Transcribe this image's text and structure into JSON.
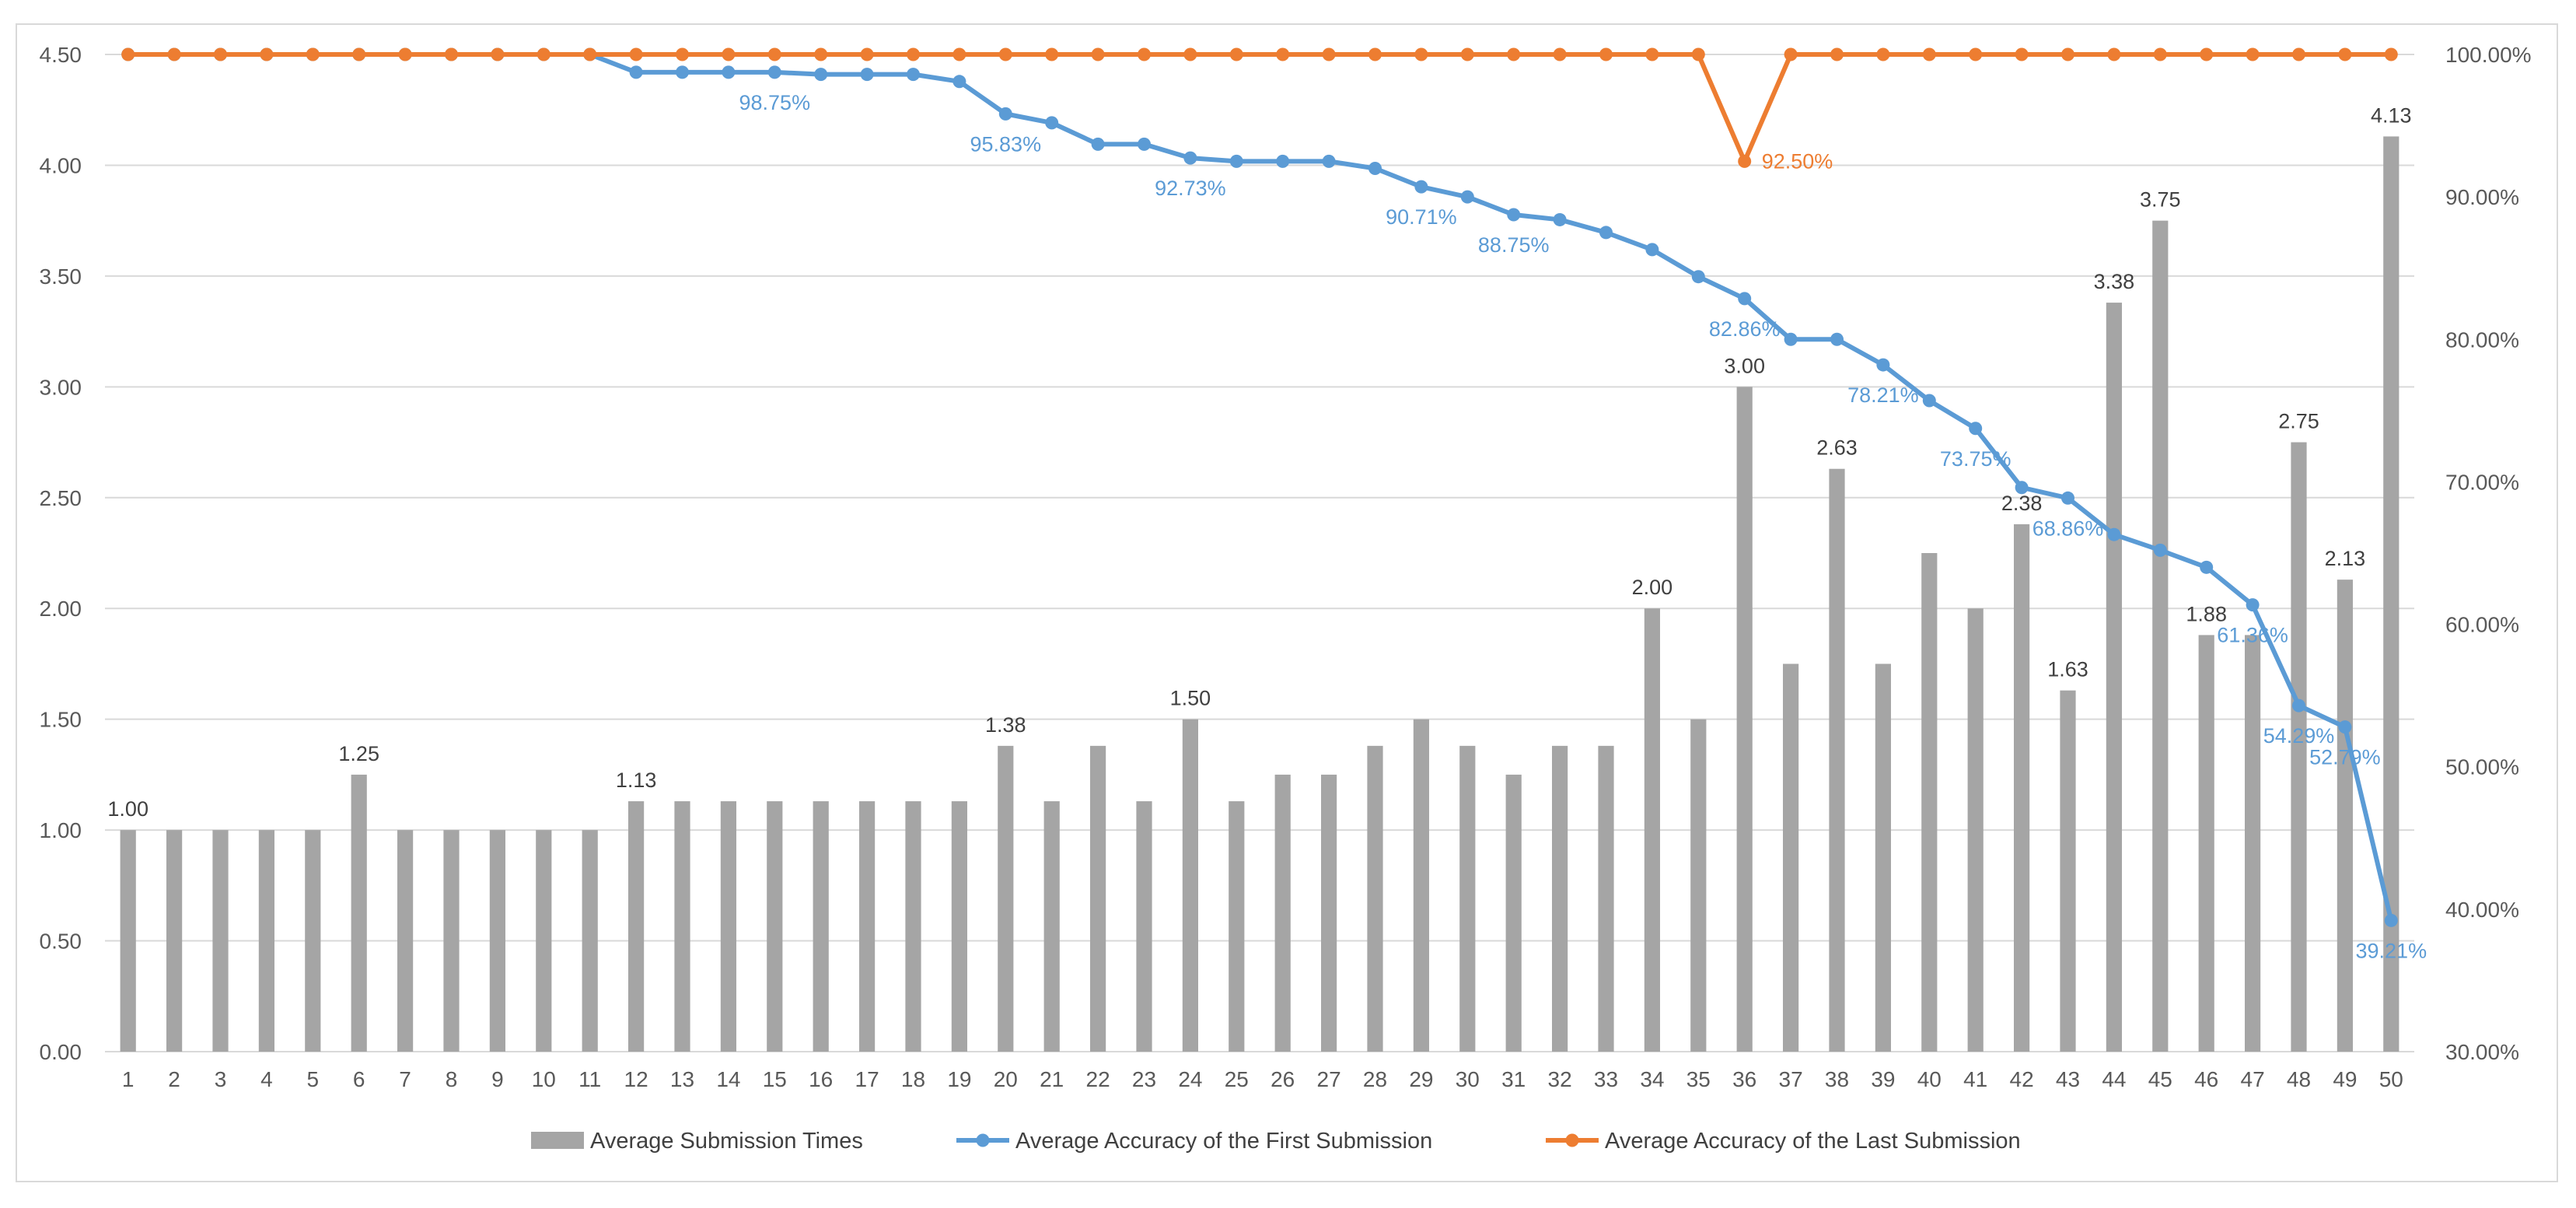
{
  "chart_data": {
    "type": "bar+line",
    "title": "",
    "categories": [
      "1",
      "2",
      "3",
      "4",
      "5",
      "6",
      "7",
      "8",
      "9",
      "10",
      "11",
      "12",
      "13",
      "14",
      "15",
      "16",
      "17",
      "18",
      "19",
      "20",
      "21",
      "22",
      "23",
      "24",
      "25",
      "26",
      "27",
      "28",
      "29",
      "30",
      "31",
      "32",
      "33",
      "34",
      "35",
      "36",
      "37",
      "38",
      "39",
      "40",
      "41",
      "42",
      "43",
      "44",
      "45",
      "46",
      "47",
      "48",
      "49",
      "50"
    ],
    "series": [
      {
        "name": "Average Submission Times",
        "kind": "bar",
        "axis": "left",
        "color": "#a5a5a5",
        "values": [
          1.0,
          1.0,
          1.0,
          1.0,
          1.0,
          1.25,
          1.0,
          1.0,
          1.0,
          1.0,
          1.0,
          1.13,
          1.13,
          1.13,
          1.13,
          1.13,
          1.13,
          1.13,
          1.13,
          1.38,
          1.13,
          1.38,
          1.13,
          1.5,
          1.13,
          1.25,
          1.25,
          1.38,
          1.5,
          1.38,
          1.25,
          1.38,
          1.38,
          2.0,
          1.5,
          3.0,
          1.75,
          2.63,
          1.75,
          2.25,
          2.0,
          2.38,
          1.63,
          3.38,
          3.75,
          1.88,
          1.88,
          2.75,
          2.13,
          4.13
        ]
      },
      {
        "name": "Average Accuracy of the First Submission",
        "kind": "line",
        "axis": "right",
        "color": "#5b9bd5",
        "values": [
          100,
          100,
          100,
          100,
          100,
          100,
          100,
          100,
          100,
          100,
          100,
          98.75,
          98.75,
          98.75,
          98.75,
          98.6,
          98.6,
          98.6,
          98.1,
          95.83,
          95.2,
          93.7,
          93.7,
          92.73,
          92.5,
          92.5,
          92.5,
          92.0,
          90.71,
          90.0,
          88.75,
          88.4,
          87.5,
          86.3,
          84.4,
          82.86,
          80.0,
          80.0,
          78.21,
          75.7,
          73.75,
          69.6,
          68.86,
          66.3,
          65.2,
          64.0,
          61.36,
          54.29,
          52.79,
          39.21
        ]
      },
      {
        "name": "Average Accuracy of the Last Submission",
        "kind": "line",
        "axis": "right",
        "color": "#ed7d31",
        "values": [
          100,
          100,
          100,
          100,
          100,
          100,
          100,
          100,
          100,
          100,
          100,
          100,
          100,
          100,
          100,
          100,
          100,
          100,
          100,
          100,
          100,
          100,
          100,
          100,
          100,
          100,
          100,
          100,
          100,
          100,
          100,
          100,
          100,
          100,
          100,
          92.5,
          100,
          100,
          100,
          100,
          100,
          100,
          100,
          100,
          100,
          100,
          100,
          100,
          100,
          100
        ]
      }
    ],
    "y_left": {
      "min": 0,
      "max": 4.5,
      "step": 0.5,
      "ticks": [
        "0.00",
        "0.50",
        "1.00",
        "1.50",
        "2.00",
        "2.50",
        "3.00",
        "3.50",
        "4.00",
        "4.50"
      ]
    },
    "y_right": {
      "min": 30,
      "max": 100,
      "step": 10,
      "ticks": [
        "30.00%",
        "40.00%",
        "50.00%",
        "60.00%",
        "70.00%",
        "80.00%",
        "90.00%",
        "100.00%"
      ]
    },
    "bar_labels": [
      {
        "i": 0,
        "text": "1.00"
      },
      {
        "i": 5,
        "text": "1.25"
      },
      {
        "i": 11,
        "text": "1.13"
      },
      {
        "i": 19,
        "text": "1.38"
      },
      {
        "i": 23,
        "text": "1.50"
      },
      {
        "i": 33,
        "text": "2.00"
      },
      {
        "i": 35,
        "text": "3.00"
      },
      {
        "i": 37,
        "text": "2.63"
      },
      {
        "i": 41,
        "text": "2.38"
      },
      {
        "i": 42,
        "text": "1.63"
      },
      {
        "i": 43,
        "text": "3.38"
      },
      {
        "i": 44,
        "text": "3.75"
      },
      {
        "i": 45,
        "text": "1.88"
      },
      {
        "i": 47,
        "text": "2.75"
      },
      {
        "i": 48,
        "text": "2.13"
      },
      {
        "i": 49,
        "text": "4.13"
      }
    ],
    "first_labels": [
      {
        "i": 14,
        "text": "98.75%"
      },
      {
        "i": 19,
        "text": "95.83%"
      },
      {
        "i": 23,
        "text": "92.73%"
      },
      {
        "i": 28,
        "text": "90.71%"
      },
      {
        "i": 30,
        "text": "88.75%"
      },
      {
        "i": 35,
        "text": "82.86%"
      },
      {
        "i": 38,
        "text": "78.21%"
      },
      {
        "i": 40,
        "text": "73.75%"
      },
      {
        "i": 42,
        "text": "68.86%"
      },
      {
        "i": 46,
        "text": "61.36%"
      },
      {
        "i": 47,
        "text": "54.29%"
      },
      {
        "i": 48,
        "text": "52.79%"
      },
      {
        "i": 49,
        "text": "39.21%"
      }
    ],
    "last_labels": [
      {
        "i": 35,
        "text": "92.50%"
      }
    ],
    "legend": {
      "position": "bottom",
      "items": [
        {
          "label": "Average Submission Times",
          "marker": "bar",
          "color": "#a5a5a5"
        },
        {
          "label": "Average Accuracy of the First Submission",
          "marker": "line",
          "color": "#5b9bd5"
        },
        {
          "label": "Average Accuracy of the Last Submission",
          "marker": "line",
          "color": "#ed7d31"
        }
      ]
    },
    "grid": true
  }
}
